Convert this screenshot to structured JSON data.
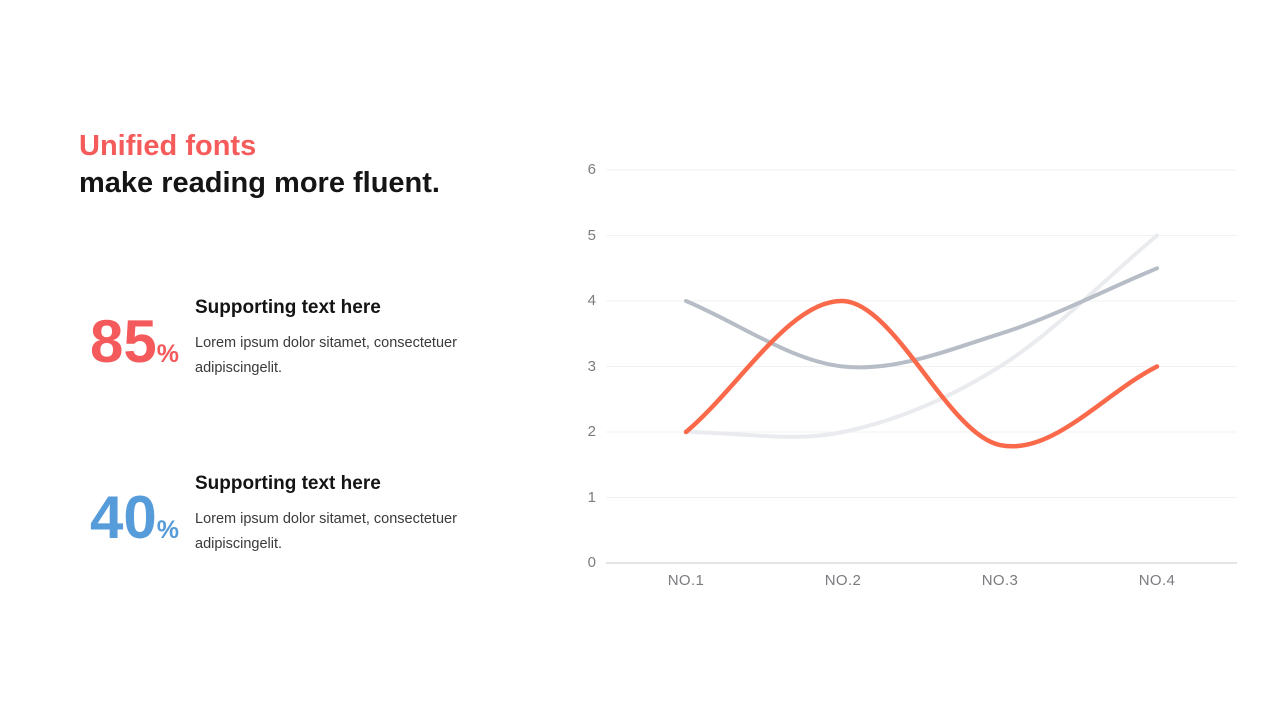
{
  "slide": {
    "title": {
      "line1": "Unified fonts",
      "line2": "make reading more fluent."
    },
    "stats": [
      {
        "value": "85",
        "unit": "%",
        "accent_color": "#f4595b",
        "heading": "Supporting text here",
        "body": "Lorem ipsum dolor sitamet, consectetuer adipiscingelit."
      },
      {
        "value": "40",
        "unit": "%",
        "accent_color": "#569bda",
        "heading": "Supporting text here",
        "body": "Lorem ipsum dolor sitamet, consectetuer adipiscingelit."
      }
    ]
  },
  "chart_data": {
    "type": "line",
    "title": "",
    "categories": [
      "NO.1",
      "NO.2",
      "NO.3",
      "NO.4"
    ],
    "series": [
      {
        "name": "light-gray-series",
        "color": "#e9ebee",
        "values": [
          2,
          2,
          3,
          5
        ]
      },
      {
        "name": "gray-series",
        "color": "#b7bdc6",
        "values": [
          4,
          3,
          3.5,
          4.5
        ]
      },
      {
        "name": "orange-series",
        "color": "#f9694a",
        "values": [
          2,
          4,
          1.8,
          3
        ]
      }
    ],
    "xlabel": "",
    "ylabel": "",
    "ylim": [
      0,
      6
    ],
    "yticks": [
      0,
      1,
      2,
      3,
      4,
      5,
      6
    ],
    "grid": "horizontal",
    "legend": "none",
    "smooth": true,
    "axis_color_hex": "#d9dbde",
    "gridline_color_hex": "#f1f2f3"
  }
}
